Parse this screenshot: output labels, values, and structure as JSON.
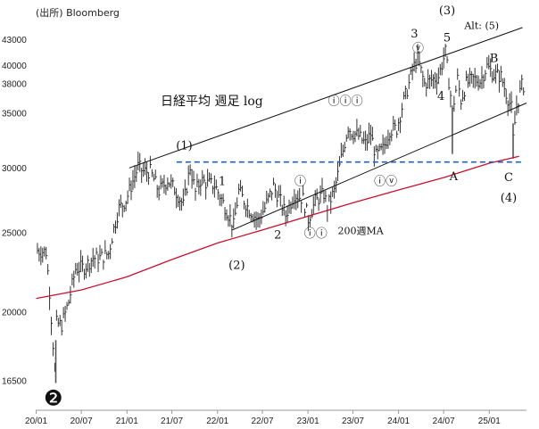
{
  "chart_data": {
    "type": "line",
    "source": "(出所) Bloomberg",
    "title": "日経平均 週足 log",
    "y_scale": "log",
    "ylim": [
      15500,
      45500
    ],
    "xlim": [
      "2019-12-30",
      "2025-05-31"
    ],
    "y_ticks": [
      16500,
      20000,
      25000,
      30000,
      35000,
      38000,
      40000,
      43000
    ],
    "x_ticks": [
      {
        "label": "20/01",
        "date": "2020-01-01"
      },
      {
        "label": "20/07",
        "date": "2020-07-01"
      },
      {
        "label": "21/01",
        "date": "2021-01-01"
      },
      {
        "label": "21/07",
        "date": "2021-07-01"
      },
      {
        "label": "22/01",
        "date": "2022-01-01"
      },
      {
        "label": "22/07",
        "date": "2022-07-01"
      },
      {
        "label": "23/01",
        "date": "2023-01-01"
      },
      {
        "label": "23/07",
        "date": "2023-07-01"
      },
      {
        "label": "24/01",
        "date": "2024-01-01"
      },
      {
        "label": "24/07",
        "date": "2024-07-01"
      },
      {
        "label": "25/01",
        "date": "2025-01-01"
      }
    ],
    "series": [
      {
        "name": "",
        "color": "#333333",
        "x": [
          "2020-01-06",
          "2020-02-10",
          "2020-02-24",
          "2020-03-16",
          "2020-03-23",
          "2020-04-13",
          "2020-05-11",
          "2020-06-08",
          "2020-07-13",
          "2020-08-17",
          "2020-09-14",
          "2020-10-19",
          "2020-11-09",
          "2020-11-30",
          "2020-12-28",
          "2021-02-15",
          "2021-03-08",
          "2021-04-05",
          "2021-05-10",
          "2021-06-14",
          "2021-07-12",
          "2021-08-16",
          "2021-09-13",
          "2021-10-04",
          "2021-10-25",
          "2021-11-22",
          "2021-12-20",
          "2022-01-24",
          "2022-03-07",
          "2022-03-28",
          "2022-05-09",
          "2022-06-13",
          "2022-07-11",
          "2022-08-15",
          "2022-09-12",
          "2022-10-03",
          "2022-11-07",
          "2022-12-12",
          "2023-01-02",
          "2023-01-30",
          "2023-03-06",
          "2023-03-20",
          "2023-04-17",
          "2023-05-15",
          "2023-06-12",
          "2023-06-26",
          "2023-07-24",
          "2023-08-21",
          "2023-09-11",
          "2023-10-02",
          "2023-10-30",
          "2023-11-27",
          "2023-12-25",
          "2024-01-15",
          "2024-02-12",
          "2024-02-26",
          "2024-03-18",
          "2024-04-15",
          "2024-05-13",
          "2024-06-10",
          "2024-07-08",
          "2024-07-29",
          "2024-08-05",
          "2024-08-26",
          "2024-09-09",
          "2024-09-30",
          "2024-10-28",
          "2024-11-25",
          "2024-12-23",
          "2025-01-20",
          "2025-02-17",
          "2025-03-10",
          "2025-03-31",
          "2025-04-07",
          "2025-04-21",
          "2025-05-12"
        ],
        "values": [
          23800,
          23700,
          21200,
          17000,
          19400,
          19300,
          20600,
          22600,
          22700,
          23300,
          23300,
          23600,
          25300,
          26800,
          27400,
          30100,
          29700,
          29700,
          28100,
          29000,
          28300,
          27000,
          30100,
          28000,
          29000,
          28700,
          28600,
          27200,
          25500,
          28100,
          26700,
          25900,
          26800,
          28500,
          27300,
          26300,
          27900,
          27500,
          26000,
          27300,
          27900,
          26900,
          28100,
          30800,
          33700,
          33200,
          32800,
          32100,
          33000,
          31000,
          31600,
          33400,
          33500,
          35600,
          38000,
          39500,
          40800,
          38000,
          38400,
          38800,
          41500,
          36800,
          35100,
          38500,
          36300,
          38000,
          38500,
          38300,
          39900,
          39000,
          38800,
          37000,
          35500,
          32500,
          35700,
          37800
        ]
      },
      {
        "name": "200週MA",
        "color": "#c8102e",
        "x": [
          "2020-01-01",
          "2020-07-01",
          "2021-01-01",
          "2021-07-01",
          "2022-01-01",
          "2022-07-01",
          "2023-01-01",
          "2023-07-01",
          "2024-01-01",
          "2024-07-01",
          "2025-01-01",
          "2025-05-01"
        ],
        "values": [
          20800,
          21300,
          22100,
          23200,
          24300,
          25200,
          26200,
          27200,
          28200,
          29200,
          30400,
          31000
        ]
      }
    ],
    "reference_lines": [
      {
        "type": "horizontal",
        "value": 30500,
        "color": "#1f5fbf",
        "style": "dashed"
      }
    ],
    "channel": [
      {
        "from": [
          "2021-01-10",
          30000
        ],
        "to": [
          "2025-05-15",
          44500
        ]
      },
      {
        "from": [
          "2022-03-01",
          25200
        ],
        "to": [
          "2025-05-31",
          36000
        ]
      }
    ],
    "annotations": [
      {
        "text": "(1)",
        "x": "2021-08-20",
        "y": 31600
      },
      {
        "text": "1",
        "x": "2022-01-20",
        "y": 28600
      },
      {
        "text": "(2)",
        "x": "2022-03-20",
        "y": 22600
      },
      {
        "text": "2",
        "x": "2022-09-01",
        "y": 24600
      },
      {
        "text": "ⓘ",
        "x": "2022-12-01",
        "y": 28600
      },
      {
        "text": "ⓘⓘ",
        "x": "2023-02-01",
        "y": 24700
      },
      {
        "text": "ⓘⓘⓘ",
        "x": "2023-06-01",
        "y": 35800
      },
      {
        "text": "ⓘⓥ",
        "x": "2023-11-10",
        "y": 28600
      },
      {
        "text": "ⓥ",
        "x": "2024-03-20",
        "y": 41500
      },
      {
        "text": "3",
        "x": "2024-03-05",
        "y": 43300
      },
      {
        "text": "(3)",
        "x": "2024-07-15",
        "y": 46200
      },
      {
        "text": "5",
        "x": "2024-07-15",
        "y": 42800
      },
      {
        "text": "Alt: (5)",
        "x": "2024-12-01",
        "y": 44300
      },
      {
        "text": "4",
        "x": "2024-06-20",
        "y": 36300
      },
      {
        "text": "B",
        "x": "2025-01-20",
        "y": 40400
      },
      {
        "text": "A",
        "x": "2024-08-10",
        "y": 29000
      },
      {
        "text": "C",
        "x": "2025-03-20",
        "y": 28900
      },
      {
        "text": "(4)",
        "x": "2025-03-20",
        "y": 27300
      },
      {
        "text": "200週MA",
        "x": "2023-08-01",
        "y": 24900,
        "color": "#c8102e"
      },
      {
        "text": "❷",
        "x": "2020-03-10",
        "y": 15400
      }
    ]
  }
}
